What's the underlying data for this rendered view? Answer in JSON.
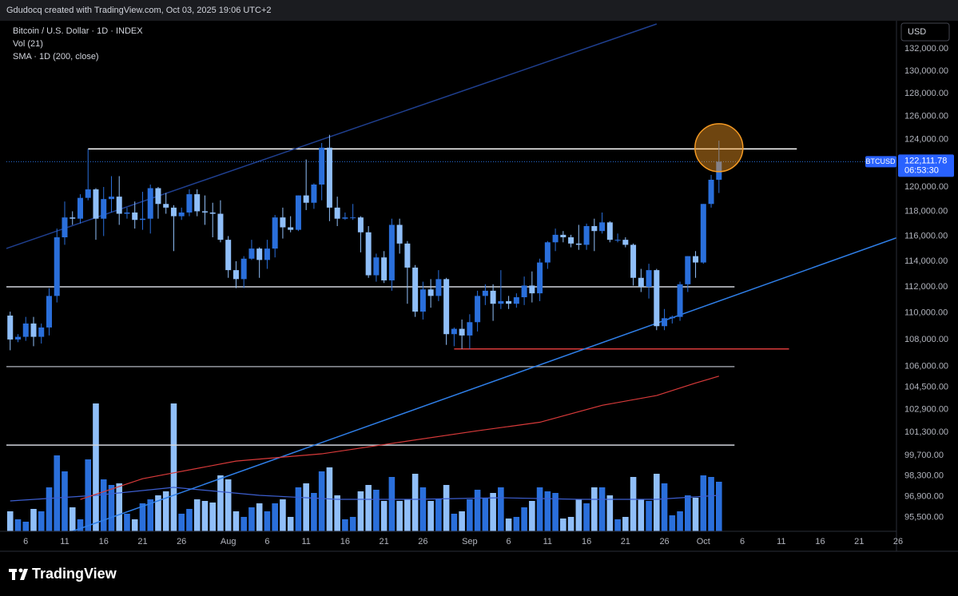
{
  "header": {
    "credit": "Gdudocq created with TradingView.com, Oct 03, 2025 19:06 UTC+2"
  },
  "footer": {
    "logo_text": "TradingView"
  },
  "chart_data": {
    "type": "candlestick",
    "title": "Bitcoin / U.S. Dollar · 1D · INDEX",
    "indicators": [
      "Vol (21)",
      "SMA · 1D (200, close)"
    ],
    "currency": "USD",
    "symbol": "BTCUSD",
    "countdown": "06:53:30",
    "last_price": {
      "value": 122111.78,
      "label": "122,111.78"
    },
    "log_scale": true,
    "up_color": "#2a6fdb",
    "down_color": "#90bff9",
    "xlim": [
      "07-03",
      "10-26"
    ],
    "ylim": [
      94600,
      134300
    ],
    "yticks": [
      {
        "value": 132000,
        "label": "132,000.00"
      },
      {
        "value": 130000,
        "label": "130,000.00"
      },
      {
        "value": 128000,
        "label": "128,000.00"
      },
      {
        "value": 126000,
        "label": "126,000.00"
      },
      {
        "value": 124000,
        "label": "124,000.00"
      },
      {
        "value": 120000,
        "label": "120,000.00"
      },
      {
        "value": 118000,
        "label": "118,000.00"
      },
      {
        "value": 116000,
        "label": "116,000.00"
      },
      {
        "value": 114000,
        "label": "114,000.00"
      },
      {
        "value": 112000,
        "label": "112,000.00"
      },
      {
        "value": 110000,
        "label": "110,000.00"
      },
      {
        "value": 108000,
        "label": "108,000.00"
      },
      {
        "value": 106000,
        "label": "106,000.00"
      },
      {
        "value": 104500,
        "label": "104,500.00"
      },
      {
        "value": 102900,
        "label": "102,900.00"
      },
      {
        "value": 101300,
        "label": "101,300.00"
      },
      {
        "value": 99700,
        "label": "99,700.00"
      },
      {
        "value": 98300,
        "label": "98,300.00"
      },
      {
        "value": 96900,
        "label": "96,900.00"
      },
      {
        "value": 95500,
        "label": "95,500.00"
      }
    ],
    "xticks": [
      {
        "value": "07-06",
        "label": "6"
      },
      {
        "value": "07-11",
        "label": "11"
      },
      {
        "value": "07-16",
        "label": "16"
      },
      {
        "value": "07-21",
        "label": "21"
      },
      {
        "value": "07-26",
        "label": "26"
      },
      {
        "value": "08-01",
        "label": "Aug"
      },
      {
        "value": "08-06",
        "label": "6"
      },
      {
        "value": "08-11",
        "label": "11"
      },
      {
        "value": "08-16",
        "label": "16"
      },
      {
        "value": "08-21",
        "label": "21"
      },
      {
        "value": "08-26",
        "label": "26"
      },
      {
        "value": "09-01",
        "label": "Sep"
      },
      {
        "value": "09-06",
        "label": "6"
      },
      {
        "value": "09-11",
        "label": "11"
      },
      {
        "value": "09-16",
        "label": "16"
      },
      {
        "value": "09-21",
        "label": "21"
      },
      {
        "value": "09-26",
        "label": "26"
      },
      {
        "value": "10-01",
        "label": "Oct"
      },
      {
        "value": "10-06",
        "label": "6"
      },
      {
        "value": "10-11",
        "label": "11"
      },
      {
        "value": "10-16",
        "label": "16"
      },
      {
        "value": "10-21",
        "label": "21"
      },
      {
        "value": "10-26",
        "label": "26"
      }
    ],
    "x": [
      "07-04",
      "07-05",
      "07-06",
      "07-07",
      "07-08",
      "07-09",
      "07-10",
      "07-11",
      "07-12",
      "07-13",
      "07-14",
      "07-15",
      "07-16",
      "07-17",
      "07-18",
      "07-19",
      "07-20",
      "07-21",
      "07-22",
      "07-23",
      "07-24",
      "07-25",
      "07-26",
      "07-27",
      "07-28",
      "07-29",
      "07-30",
      "07-31",
      "08-01",
      "08-02",
      "08-03",
      "08-04",
      "08-05",
      "08-06",
      "08-07",
      "08-08",
      "08-09",
      "08-10",
      "08-11",
      "08-12",
      "08-13",
      "08-14",
      "08-15",
      "08-16",
      "08-17",
      "08-18",
      "08-19",
      "08-20",
      "08-21",
      "08-22",
      "08-23",
      "08-24",
      "08-25",
      "08-26",
      "08-27",
      "08-28",
      "08-29",
      "08-30",
      "08-31",
      "09-01",
      "09-02",
      "09-03",
      "09-04",
      "09-05",
      "09-06",
      "09-07",
      "09-08",
      "09-09",
      "09-10",
      "09-11",
      "09-12",
      "09-13",
      "09-14",
      "09-15",
      "09-16",
      "09-17",
      "09-18",
      "09-19",
      "09-20",
      "09-21",
      "09-22",
      "09-23",
      "09-24",
      "09-25",
      "09-26",
      "09-27",
      "09-28",
      "09-29",
      "09-30",
      "10-01",
      "10-02",
      "10-03"
    ],
    "open": [
      109800,
      108000,
      108200,
      109200,
      108200,
      108900,
      111300,
      115900,
      117500,
      117400,
      119100,
      119800,
      117400,
      119000,
      119200,
      117800,
      117900,
      117300,
      117400,
      119900,
      118600,
      118300,
      117600,
      117900,
      119400,
      118000,
      117900,
      117800,
      115700,
      113300,
      112600,
      114200,
      115000,
      114100,
      115000,
      117500,
      116700,
      116500,
      119300,
      118700,
      120200,
      123300,
      118300,
      117400,
      117500,
      117500,
      116300,
      112900,
      114300,
      112500,
      116900,
      115400,
      113500,
      110100,
      111800,
      111300,
      112600,
      108400,
      108800,
      108300,
      109300,
      111300,
      111700,
      110700,
      110900,
      110700,
      111200,
      112100,
      111500,
      113900,
      115500,
      116100,
      115900,
      115400,
      115300,
      116800,
      116400,
      117100,
      115700,
      115700,
      115300,
      112700,
      112000,
      113300,
      109000,
      109600,
      109700,
      112200,
      114400,
      113900,
      118600,
      120600
    ],
    "high": [
      110100,
      108400,
      109700,
      109700,
      109200,
      111900,
      116600,
      118800,
      118000,
      119400,
      123200,
      119900,
      120000,
      120900,
      120900,
      118300,
      118800,
      119600,
      120200,
      120000,
      119500,
      118500,
      118300,
      119800,
      119800,
      119300,
      118700,
      118900,
      116000,
      114000,
      114400,
      115700,
      115100,
      115700,
      117700,
      118300,
      117600,
      119300,
      122300,
      120300,
      123700,
      124400,
      119200,
      117900,
      118600,
      117600,
      116800,
      114600,
      114800,
      117400,
      117400,
      115600,
      113700,
      112400,
      112600,
      113300,
      112700,
      108900,
      109500,
      109900,
      111700,
      112200,
      112200,
      113300,
      111300,
      111500,
      112800,
      113200,
      114200,
      115600,
      116600,
      116400,
      116100,
      116900,
      117000,
      117400,
      117900,
      117200,
      116200,
      115900,
      115400,
      113400,
      113800,
      113400,
      110300,
      109800,
      112400,
      114400,
      114800,
      118600,
      121000,
      123900
    ],
    "low": [
      107200,
      107800,
      107900,
      107500,
      107700,
      108300,
      110800,
      115300,
      116900,
      117000,
      118900,
      115700,
      116000,
      117900,
      116900,
      117400,
      116600,
      116500,
      116200,
      117400,
      117800,
      114800,
      117300,
      117600,
      117600,
      116900,
      115900,
      115500,
      112700,
      111900,
      111900,
      114100,
      112700,
      113400,
      114300,
      115800,
      116300,
      116400,
      118100,
      118200,
      118900,
      117200,
      116800,
      117300,
      117300,
      114700,
      112700,
      112400,
      112300,
      111700,
      114600,
      110700,
      109700,
      109500,
      110400,
      110900,
      107600,
      107500,
      107300,
      107300,
      108600,
      110600,
      109400,
      110300,
      110300,
      110400,
      110600,
      110800,
      110900,
      113400,
      114800,
      115500,
      115100,
      114900,
      114900,
      114800,
      116200,
      115500,
      115500,
      115100,
      112100,
      111600,
      111100,
      108700,
      108700,
      109200,
      109400,
      111600,
      112700,
      113800,
      118300,
      119500
    ],
    "close": [
      108000,
      108200,
      109200,
      108200,
      108900,
      111300,
      115900,
      117500,
      117400,
      119100,
      119800,
      117400,
      119000,
      119200,
      117800,
      117900,
      117300,
      117400,
      119900,
      118600,
      118300,
      117600,
      117900,
      119400,
      118000,
      117900,
      117800,
      115700,
      113300,
      112600,
      114200,
      115000,
      114100,
      115000,
      117500,
      116700,
      116500,
      119300,
      118700,
      120200,
      123300,
      118300,
      117400,
      117500,
      117500,
      116300,
      112900,
      114300,
      112500,
      116900,
      115400,
      113500,
      110100,
      111800,
      111300,
      112600,
      108400,
      108800,
      108300,
      109300,
      111300,
      111700,
      110700,
      110900,
      110700,
      111200,
      112100,
      111500,
      113900,
      115500,
      116100,
      115900,
      115400,
      115300,
      116800,
      116400,
      117100,
      115700,
      115700,
      115300,
      112700,
      112000,
      113300,
      109000,
      109600,
      109700,
      112200,
      114400,
      113900,
      118600,
      120600,
      122111.78
    ],
    "volume": [
      25,
      15,
      12,
      28,
      25,
      55,
      95,
      75,
      30,
      15,
      90,
      160,
      65,
      58,
      60,
      22,
      15,
      35,
      40,
      45,
      50,
      160,
      22,
      28,
      40,
      38,
      36,
      70,
      65,
      25,
      18,
      30,
      35,
      25,
      35,
      40,
      18,
      55,
      60,
      48,
      75,
      80,
      45,
      15,
      18,
      50,
      58,
      52,
      38,
      68,
      38,
      40,
      72,
      55,
      38,
      40,
      58,
      22,
      25,
      40,
      52,
      42,
      48,
      55,
      16,
      18,
      30,
      38,
      55,
      50,
      48,
      16,
      18,
      40,
      35,
      55,
      55,
      45,
      15,
      18,
      68,
      40,
      38,
      72,
      60,
      20,
      25,
      45,
      42,
      70,
      68,
      62
    ],
    "volume_ma": {
      "color": "#3d5fd0",
      "x": [
        "07-04",
        "07-15",
        "07-25",
        "08-05",
        "08-15",
        "08-25",
        "09-05",
        "09-15",
        "09-25",
        "10-03"
      ],
      "values": [
        38,
        45,
        55,
        45,
        40,
        40,
        42,
        40,
        40,
        45
      ]
    },
    "sma": {
      "color": "#d83a3a",
      "x": [
        "07-13",
        "07-21",
        "08-02",
        "08-13",
        "08-23",
        "09-02",
        "09-10",
        "09-18",
        "09-25",
        "09-30",
        "10-03"
      ],
      "values": [
        96700,
        98100,
        99300,
        99800,
        100600,
        101400,
        102000,
        103200,
        103900,
        104800,
        105300
      ]
    },
    "drawings": [
      {
        "color": "#ffffff",
        "x": [
          "07-14",
          "10-13"
        ],
        "values": [
          123200,
          123200
        ]
      },
      {
        "color": "#d1d4dc",
        "x": [
          "07-03",
          "10-05"
        ],
        "values": [
          112000,
          112000
        ]
      },
      {
        "color": "#9598a1",
        "x": [
          "07-03",
          "10-05"
        ],
        "values": [
          106000,
          106000
        ]
      },
      {
        "color": "#d1d4dc",
        "x": [
          "07-03",
          "10-05"
        ],
        "values": [
          100400,
          100400
        ]
      },
      {
        "color": "#d83a3a",
        "x": [
          "08-30",
          "10-12"
        ],
        "values": [
          107300,
          107300
        ]
      },
      {
        "color": "#2f7fe8",
        "x": [
          "07-12",
          "10-26"
        ],
        "values": [
          94600,
          115900
        ]
      },
      {
        "color": "#1f3f8f",
        "x": [
          "07-03",
          "09-25"
        ],
        "values": [
          114900,
          134300
        ]
      }
    ],
    "highlight": {
      "x": "10-03",
      "value": 123300,
      "color": "#f59a23"
    }
  }
}
